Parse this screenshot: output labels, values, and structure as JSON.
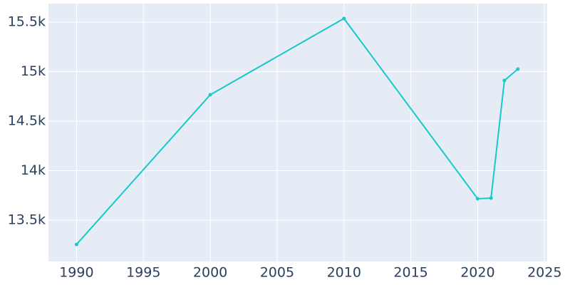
{
  "chart_data": {
    "type": "line",
    "x": [
      1990,
      2000,
      2010,
      2020,
      2021,
      2022,
      2023
    ],
    "series": [
      {
        "color": "#17c9c9",
        "values": [
          13255,
          14766,
          15536,
          13716,
          13723,
          14910,
          15025
        ]
      }
    ],
    "xlim": [
      1987.9,
      2025.2
    ],
    "xticks": [
      1990,
      1995,
      2000,
      2005,
      2010,
      2015,
      2020,
      2025
    ],
    "ylim": [
      13083,
      15687
    ],
    "yticks": [
      {
        "value": 13500,
        "label": "13.5k"
      },
      {
        "value": 14000,
        "label": "14k"
      },
      {
        "value": 14500,
        "label": "14.5k"
      },
      {
        "value": 15000,
        "label": "15k"
      },
      {
        "value": 15500,
        "label": "15.5k"
      }
    ],
    "grid": true
  }
}
